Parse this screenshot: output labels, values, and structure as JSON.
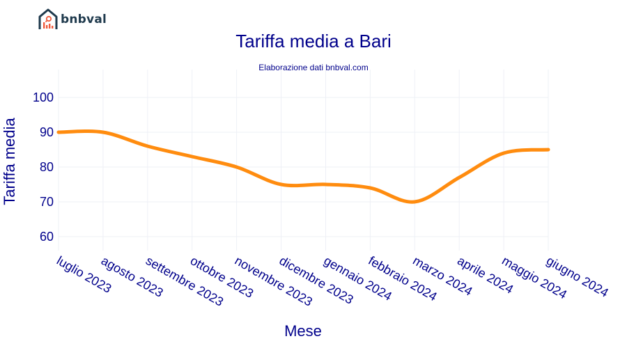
{
  "brand": {
    "name": "bnbval",
    "icon": "house-chart-magnifier-icon"
  },
  "header": {
    "title": "Tariffa media a Bari",
    "subtitle": "Elaborazione dati bnbval.com"
  },
  "colors": {
    "line": "#ff8c0f",
    "text": "#00008b",
    "grid": "#eef0f6",
    "logo_dark": "#1f3a4d",
    "logo_accent": "#f05a3c"
  },
  "chart_data": {
    "type": "line",
    "title": "Tariffa media a Bari",
    "subtitle": "Elaborazione dati bnbval.com",
    "xlabel": "Mese",
    "ylabel": "Tariffa media",
    "categories": [
      "luglio 2023",
      "agosto 2023",
      "settembre 2023",
      "ottobre 2023",
      "novembre 2023",
      "dicembre 2023",
      "gennaio 2024",
      "febbraio 2024",
      "marzo 2024",
      "aprile 2024",
      "maggio 2024",
      "giugno 2024"
    ],
    "series": [
      {
        "name": "Tariffa media",
        "values": [
          90,
          90,
          86,
          83,
          80,
          75,
          75,
          74,
          70,
          77,
          84,
          85
        ]
      }
    ],
    "yticks": [
      60,
      70,
      80,
      90,
      100
    ],
    "ylim": [
      56,
      108
    ],
    "grid": true,
    "legend": "none",
    "line_shape": "spline"
  }
}
